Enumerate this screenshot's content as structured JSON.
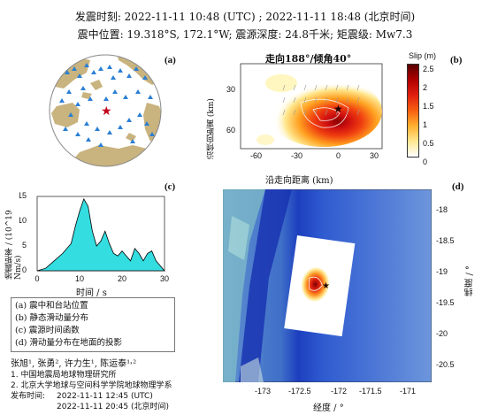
{
  "header": {
    "line1": "发震时刻: 2022-11-11 10:48 (UTC) ;  2022-11-11  18:48 (北京时间)",
    "line2": "震中位置: 19.318°S,  172.1°W;  震源深度: 24.8千米; 矩震级: Mw7.3"
  },
  "panels": {
    "a": "(a)",
    "b": "(b)",
    "c": "(c)",
    "d": "(d)"
  },
  "panel_b": {
    "title": "走向188°/倾角40°",
    "xlabel": "沿走向距离 (km)",
    "ylabel": "沿倾向距离 (km)",
    "xticks": [
      "-60",
      "-30",
      "0",
      "30"
    ],
    "yticks": [
      "30",
      "60"
    ],
    "colorbar_label": "Slip (m)",
    "colorbar_ticks": [
      "2.5",
      "2",
      "1.5",
      "1",
      "0.5",
      "0"
    ],
    "colorbar_range": [
      0,
      2.5
    ]
  },
  "panel_c": {
    "xlabel": "时间 / s",
    "ylabel": "地震矩率 / (10^19 Nm/s)",
    "xticks": [
      "0",
      "10",
      "20",
      "30"
    ],
    "yticks": [
      "0",
      "5",
      "10",
      "15"
    ]
  },
  "panel_d": {
    "xlabel": "经度 / °",
    "ylabel": "纬度 / °",
    "xticks": [
      "-173",
      "-172.5",
      "-172",
      "-171.5",
      "-171"
    ],
    "yticks": [
      "-18",
      "-18.5",
      "-19",
      "-19.5",
      "-20",
      "-20.5"
    ]
  },
  "legend": [
    "(a) 震中和台站位置",
    "(b) 静态滑动量分布",
    "(c) 震源时间函数",
    "(d) 滑动量分布在地面的投影"
  ],
  "authors": "张旭¹, 张勇², 许力生¹, 陈运泰¹˒²",
  "affiliations": [
    "1. 中国地震局地球物理研究所",
    "2. 北京大学地球与空间科学学院地球物理学系"
  ],
  "release": {
    "label": "发布时间:",
    "utc": "2022-11-11  12:45 (UTC)",
    "beijing": "2022-11-11  20:45 (北京时间)"
  },
  "chart_data": [
    {
      "type": "area",
      "panel": "c",
      "x": [
        0,
        2,
        4,
        6,
        8,
        9,
        10,
        11,
        12,
        13,
        14,
        15,
        16,
        17,
        18,
        19,
        20,
        21,
        22,
        23,
        24,
        25,
        26,
        27,
        28,
        30
      ],
      "y": [
        0,
        0.5,
        2,
        3.5,
        5.5,
        9,
        12,
        14.5,
        13,
        8,
        5,
        6,
        8,
        5.5,
        3.5,
        3,
        4,
        3,
        2,
        4.5,
        3.5,
        2,
        3.5,
        4,
        2,
        0
      ],
      "xlabel": "时间 / s",
      "ylabel": "地震矩率 / (10^19 Nm/s)",
      "xlim": [
        0,
        30
      ],
      "ylim": [
        0,
        15
      ],
      "color": "#33dde0"
    },
    {
      "type": "heatmap",
      "panel": "b",
      "title": "走向188°/倾角40°",
      "xlabel": "沿走向距离 (km)",
      "ylabel": "沿倾向距离 (km)",
      "xlim": [
        -70,
        45
      ],
      "ylim": [
        75,
        15
      ],
      "zlabel": "Slip (m)",
      "zlim": [
        0,
        2.5
      ],
      "max_slip_location": [
        0,
        38
      ]
    }
  ],
  "colors": {
    "land": "#c9b37e",
    "ocean": "#ffffff",
    "stations": "#2a7fd4",
    "epicenter": "#c0001a",
    "stf": "#33dde0"
  }
}
